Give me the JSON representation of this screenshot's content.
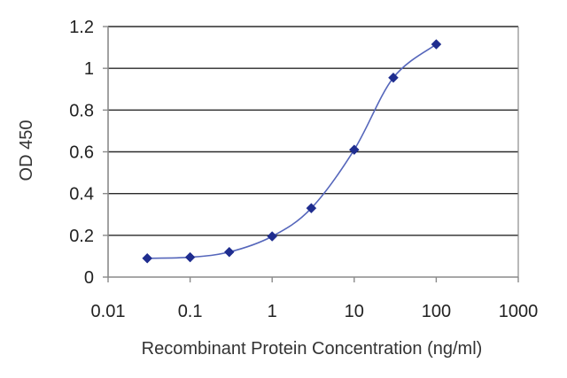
{
  "chart_data": {
    "type": "scatter",
    "title": "",
    "xlabel": "Recombinant Protein Concentration (ng/ml)",
    "ylabel": "OD 450",
    "x_scale": "log",
    "xlim": [
      0.01,
      1000
    ],
    "ylim": [
      0,
      1.2
    ],
    "grid": true,
    "legend": "none",
    "x_ticks": [
      "0.01",
      "0.1",
      "1",
      "10",
      "100",
      "1000"
    ],
    "y_ticks": [
      "0",
      "0.2",
      "0.4",
      "0.6",
      "0.8",
      "1",
      "1.2"
    ],
    "series": [
      {
        "x": [
          0.03,
          0.1,
          0.3,
          1,
          3,
          10,
          30,
          100
        ],
        "y": [
          0.09,
          0.095,
          0.12,
          0.195,
          0.33,
          0.61,
          0.955,
          1.115
        ],
        "color": "#1f2d8f",
        "marker": "diamond",
        "fit_line": true
      }
    ]
  }
}
